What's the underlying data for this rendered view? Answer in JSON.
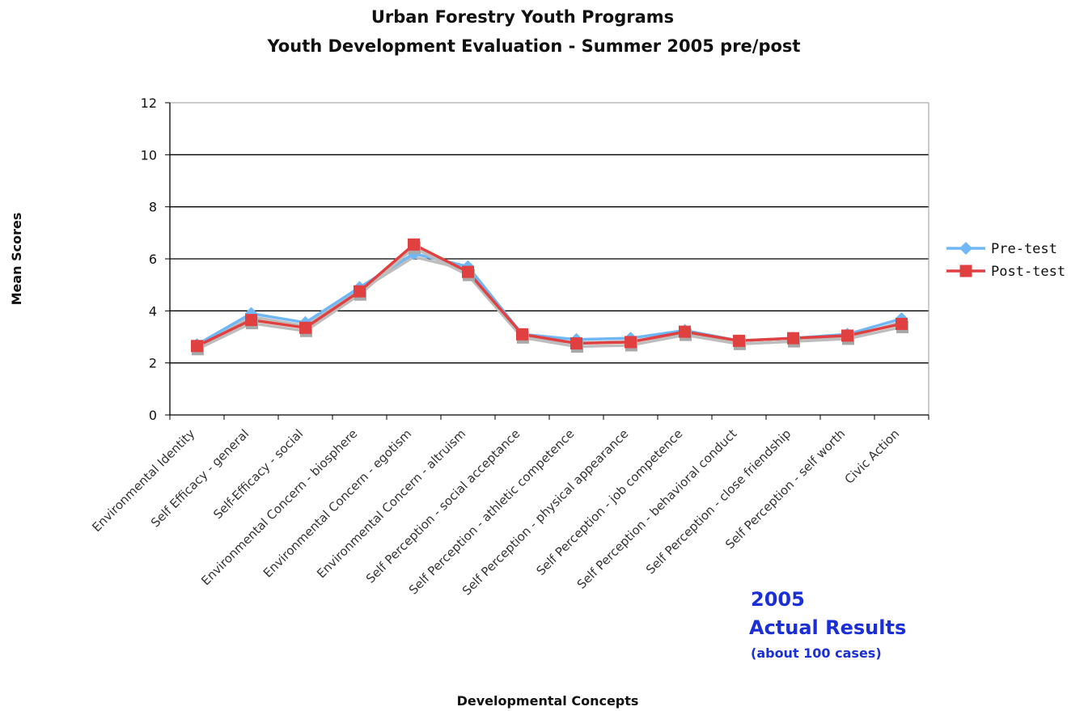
{
  "chart_data": {
    "type": "line",
    "title": "Urban Forestry Youth Programs",
    "subtitle": "Youth Development Evaluation - Summer 2005 pre/post",
    "xlabel": "Developmental Concepts",
    "ylabel": "Mean Scores",
    "ylim": [
      0,
      12
    ],
    "yticks": [
      "0",
      "2",
      "4",
      "6",
      "8",
      "10",
      "12"
    ],
    "grid": true,
    "legend_position": "right",
    "categories": [
      "Environmental Identity",
      "Self Efficacy - general",
      "Self-Efficacy - social",
      "Environmental Concern - biosphere",
      "Environmental Concern - egotism",
      "Environmental Concern - altruism",
      "Self Perception - social acceptance",
      "Self Perception - athletic competence",
      "Self Perception - physical appearance",
      "Self Perception - job competence",
      "Self Perception - behavioral conduct",
      "Self Perception - close friendship",
      "Self Perception - self worth",
      "Civic Action"
    ],
    "series": [
      {
        "name": "Pre-test",
        "color": "#6fb7f5",
        "marker": "diamond",
        "values": [
          2.7,
          3.9,
          3.55,
          4.9,
          6.2,
          5.7,
          3.1,
          2.9,
          2.95,
          3.25,
          2.85,
          2.95,
          3.1,
          3.7
        ]
      },
      {
        "name": "Post-test",
        "color": "#e04040",
        "marker": "square",
        "values": [
          2.65,
          3.65,
          3.35,
          4.75,
          6.55,
          5.5,
          3.1,
          2.75,
          2.8,
          3.2,
          2.85,
          2.95,
          3.05,
          3.5
        ]
      }
    ],
    "annotation": {
      "year": "2005",
      "title": "Actual Results",
      "note": "(about 100 cases)",
      "color": "#1a2fd6"
    }
  }
}
